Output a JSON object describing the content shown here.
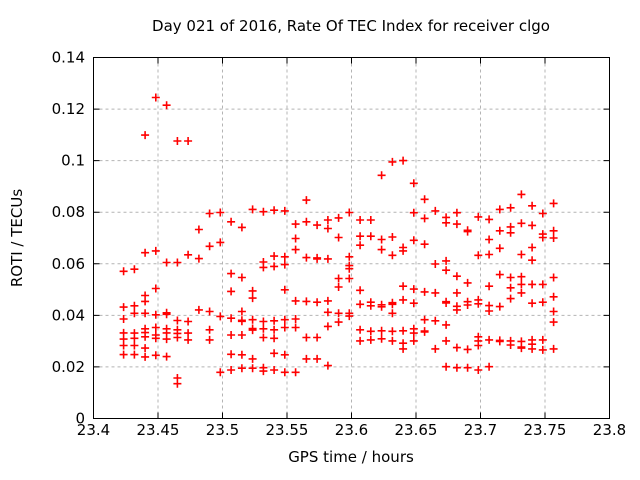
{
  "chart_data": {
    "type": "scatter",
    "title": "Day 021 of 2016, Rate Of TEC Index for receiver clgo",
    "xlabel": "GPS time / hours",
    "ylabel": "ROTI / TECUs",
    "xlim": [
      23.4,
      23.8
    ],
    "ylim": [
      0,
      0.14
    ],
    "xticks": [
      "23.4",
      "23.45",
      "23.5",
      "23.55",
      "23.6",
      "23.65",
      "23.7",
      "23.75",
      "23.8"
    ],
    "yticks": [
      "0",
      "0.02",
      "0.04",
      "0.06",
      "0.08",
      "0.1",
      "0.12",
      "0.14"
    ],
    "grid": true,
    "legend": "none",
    "marker": "plus",
    "marker_color": "#ff0000",
    "series": [
      {
        "name": "ROTI",
        "points": [
          [
            23.4233,
            0.0571
          ],
          [
            23.4233,
            0.0432
          ],
          [
            23.4233,
            0.0386
          ],
          [
            23.4233,
            0.0332
          ],
          [
            23.4233,
            0.0308
          ],
          [
            23.4233,
            0.0283
          ],
          [
            23.4233,
            0.0248
          ],
          [
            23.4317,
            0.0579
          ],
          [
            23.4317,
            0.0437
          ],
          [
            23.4317,
            0.0408
          ],
          [
            23.4317,
            0.0331
          ],
          [
            23.4317,
            0.0311
          ],
          [
            23.4317,
            0.0283
          ],
          [
            23.4317,
            0.0248
          ],
          [
            23.44,
            0.1099
          ],
          [
            23.44,
            0.0643
          ],
          [
            23.44,
            0.0477
          ],
          [
            23.44,
            0.0454
          ],
          [
            23.44,
            0.0408
          ],
          [
            23.44,
            0.0348
          ],
          [
            23.44,
            0.0333
          ],
          [
            23.44,
            0.0317
          ],
          [
            23.44,
            0.0273
          ],
          [
            23.44,
            0.0239
          ],
          [
            23.4483,
            0.1245
          ],
          [
            23.4483,
            0.065
          ],
          [
            23.4483,
            0.0504
          ],
          [
            23.4483,
            0.0402
          ],
          [
            23.4483,
            0.0353
          ],
          [
            23.4483,
            0.0324
          ],
          [
            23.4483,
            0.0311
          ],
          [
            23.4483,
            0.0245
          ],
          [
            23.4567,
            0.1215
          ],
          [
            23.4567,
            0.0605
          ],
          [
            23.4567,
            0.041
          ],
          [
            23.4567,
            0.0404
          ],
          [
            23.4567,
            0.0348
          ],
          [
            23.4567,
            0.0332
          ],
          [
            23.4567,
            0.0308
          ],
          [
            23.4567,
            0.024
          ],
          [
            23.465,
            0.1076
          ],
          [
            23.465,
            0.0605
          ],
          [
            23.465,
            0.038
          ],
          [
            23.465,
            0.0344
          ],
          [
            23.465,
            0.033
          ],
          [
            23.465,
            0.0314
          ],
          [
            23.465,
            0.0157
          ],
          [
            23.465,
            0.0135
          ],
          [
            23.4733,
            0.1076
          ],
          [
            23.4733,
            0.0635
          ],
          [
            23.4733,
            0.0376
          ],
          [
            23.4733,
            0.0331
          ],
          [
            23.4733,
            0.0305
          ],
          [
            23.4817,
            0.0733
          ],
          [
            23.4817,
            0.062
          ],
          [
            23.4817,
            0.0421
          ],
          [
            23.49,
            0.0795
          ],
          [
            23.49,
            0.0668
          ],
          [
            23.49,
            0.0415
          ],
          [
            23.49,
            0.0344
          ],
          [
            23.49,
            0.0305
          ],
          [
            23.4983,
            0.0799
          ],
          [
            23.4983,
            0.0683
          ],
          [
            23.4983,
            0.0396
          ],
          [
            23.4983,
            0.0179
          ],
          [
            23.5067,
            0.0763
          ],
          [
            23.5067,
            0.0562
          ],
          [
            23.5067,
            0.0493
          ],
          [
            23.5067,
            0.0389
          ],
          [
            23.5067,
            0.0324
          ],
          [
            23.5067,
            0.0249
          ],
          [
            23.5067,
            0.0188
          ],
          [
            23.515,
            0.0741
          ],
          [
            23.515,
            0.0547
          ],
          [
            23.515,
            0.0415
          ],
          [
            23.515,
            0.0381
          ],
          [
            23.515,
            0.0377
          ],
          [
            23.515,
            0.0324
          ],
          [
            23.515,
            0.0247
          ],
          [
            23.515,
            0.0195
          ],
          [
            23.5233,
            0.0811
          ],
          [
            23.5233,
            0.0495
          ],
          [
            23.5233,
            0.0467
          ],
          [
            23.5233,
            0.0383
          ],
          [
            23.5233,
            0.0349
          ],
          [
            23.5233,
            0.0343
          ],
          [
            23.5233,
            0.0231
          ],
          [
            23.5233,
            0.0195
          ],
          [
            23.5317,
            0.0802
          ],
          [
            23.5317,
            0.0607
          ],
          [
            23.5317,
            0.0586
          ],
          [
            23.5317,
            0.0376
          ],
          [
            23.5317,
            0.0348
          ],
          [
            23.5317,
            0.0314
          ],
          [
            23.5317,
            0.0197
          ],
          [
            23.5317,
            0.0184
          ],
          [
            23.54,
            0.0808
          ],
          [
            23.54,
            0.063
          ],
          [
            23.54,
            0.059
          ],
          [
            23.54,
            0.0379
          ],
          [
            23.54,
            0.0344
          ],
          [
            23.54,
            0.0311
          ],
          [
            23.54,
            0.0253
          ],
          [
            23.54,
            0.0188
          ],
          [
            23.5483,
            0.0805
          ],
          [
            23.5483,
            0.0627
          ],
          [
            23.5483,
            0.0597
          ],
          [
            23.5483,
            0.0499
          ],
          [
            23.5483,
            0.0383
          ],
          [
            23.5483,
            0.0353
          ],
          [
            23.5483,
            0.0247
          ],
          [
            23.5483,
            0.0179
          ],
          [
            23.5567,
            0.0754
          ],
          [
            23.5567,
            0.0698
          ],
          [
            23.5567,
            0.0655
          ],
          [
            23.5567,
            0.0456
          ],
          [
            23.5567,
            0.0386
          ],
          [
            23.5567,
            0.0353
          ],
          [
            23.5567,
            0.0179
          ],
          [
            23.565,
            0.0847
          ],
          [
            23.565,
            0.0763
          ],
          [
            23.565,
            0.0624
          ],
          [
            23.565,
            0.0454
          ],
          [
            23.565,
            0.0314
          ],
          [
            23.565,
            0.0231
          ],
          [
            23.5733,
            0.075
          ],
          [
            23.5733,
            0.0623
          ],
          [
            23.5733,
            0.0619
          ],
          [
            23.5733,
            0.0451
          ],
          [
            23.5733,
            0.0314
          ],
          [
            23.5733,
            0.0231
          ],
          [
            23.5817,
            0.077
          ],
          [
            23.5817,
            0.0737
          ],
          [
            23.5817,
            0.0619
          ],
          [
            23.5817,
            0.0456
          ],
          [
            23.5817,
            0.0412
          ],
          [
            23.5817,
            0.0357
          ],
          [
            23.5817,
            0.0205
          ],
          [
            23.59,
            0.0778
          ],
          [
            23.59,
            0.0702
          ],
          [
            23.59,
            0.0543
          ],
          [
            23.59,
            0.051
          ],
          [
            23.59,
            0.0408
          ],
          [
            23.59,
            0.0374
          ],
          [
            23.5983,
            0.0799
          ],
          [
            23.5983,
            0.0627
          ],
          [
            23.5983,
            0.0593
          ],
          [
            23.5983,
            0.0581
          ],
          [
            23.5983,
            0.0543
          ],
          [
            23.5983,
            0.0408
          ],
          [
            23.5983,
            0.0397
          ],
          [
            23.6067,
            0.077
          ],
          [
            23.6067,
            0.0707
          ],
          [
            23.6067,
            0.0672
          ],
          [
            23.6067,
            0.0497
          ],
          [
            23.6067,
            0.0443
          ],
          [
            23.6067,
            0.0344
          ],
          [
            23.6067,
            0.0301
          ],
          [
            23.615,
            0.077
          ],
          [
            23.615,
            0.0707
          ],
          [
            23.615,
            0.0451
          ],
          [
            23.615,
            0.0437
          ],
          [
            23.615,
            0.0338
          ],
          [
            23.615,
            0.0305
          ],
          [
            23.6233,
            0.0943
          ],
          [
            23.6233,
            0.0694
          ],
          [
            23.6233,
            0.0655
          ],
          [
            23.6233,
            0.0441
          ],
          [
            23.6233,
            0.0433
          ],
          [
            23.6233,
            0.034
          ],
          [
            23.6233,
            0.0309
          ],
          [
            23.6317,
            0.0995
          ],
          [
            23.6317,
            0.0704
          ],
          [
            23.6317,
            0.0633
          ],
          [
            23.6317,
            0.0449
          ],
          [
            23.6317,
            0.0443
          ],
          [
            23.6317,
            0.0408
          ],
          [
            23.6317,
            0.0338
          ],
          [
            23.6317,
            0.0301
          ],
          [
            23.64,
            0.1
          ],
          [
            23.64,
            0.0663
          ],
          [
            23.64,
            0.065
          ],
          [
            23.64,
            0.0513
          ],
          [
            23.64,
            0.046
          ],
          [
            23.64,
            0.034
          ],
          [
            23.64,
            0.0292
          ],
          [
            23.64,
            0.027
          ],
          [
            23.6483,
            0.0912
          ],
          [
            23.6483,
            0.0798
          ],
          [
            23.6483,
            0.0691
          ],
          [
            23.6483,
            0.0502
          ],
          [
            23.6483,
            0.0447
          ],
          [
            23.6483,
            0.0348
          ],
          [
            23.6483,
            0.0331
          ],
          [
            23.6483,
            0.0301
          ],
          [
            23.6567,
            0.085
          ],
          [
            23.6567,
            0.0776
          ],
          [
            23.6567,
            0.0676
          ],
          [
            23.6567,
            0.0491
          ],
          [
            23.6567,
            0.0383
          ],
          [
            23.6567,
            0.0339
          ],
          [
            23.6567,
            0.0336
          ],
          [
            23.665,
            0.0805
          ],
          [
            23.665,
            0.0599
          ],
          [
            23.665,
            0.0487
          ],
          [
            23.665,
            0.0379
          ],
          [
            23.665,
            0.027
          ],
          [
            23.6733,
            0.078
          ],
          [
            23.6733,
            0.0759
          ],
          [
            23.6733,
            0.0611
          ],
          [
            23.6733,
            0.0575
          ],
          [
            23.6733,
            0.0453
          ],
          [
            23.6733,
            0.0448
          ],
          [
            23.6733,
            0.0363
          ],
          [
            23.6733,
            0.0301
          ],
          [
            23.6733,
            0.0201
          ],
          [
            23.6817,
            0.0798
          ],
          [
            23.6817,
            0.0754
          ],
          [
            23.6817,
            0.0552
          ],
          [
            23.6817,
            0.0487
          ],
          [
            23.6817,
            0.0435
          ],
          [
            23.6817,
            0.0421
          ],
          [
            23.6817,
            0.0275
          ],
          [
            23.6817,
            0.0197
          ],
          [
            23.69,
            0.073
          ],
          [
            23.69,
            0.0725
          ],
          [
            23.69,
            0.0526
          ],
          [
            23.69,
            0.0453
          ],
          [
            23.69,
            0.044
          ],
          [
            23.69,
            0.0268
          ],
          [
            23.69,
            0.0197
          ],
          [
            23.6983,
            0.0782
          ],
          [
            23.6983,
            0.0633
          ],
          [
            23.6983,
            0.046
          ],
          [
            23.6983,
            0.0445
          ],
          [
            23.6983,
            0.0317
          ],
          [
            23.6983,
            0.0301
          ],
          [
            23.6983,
            0.0283
          ],
          [
            23.6983,
            0.0188
          ],
          [
            23.7067,
            0.0772
          ],
          [
            23.7067,
            0.0694
          ],
          [
            23.7067,
            0.0636
          ],
          [
            23.7067,
            0.0513
          ],
          [
            23.7067,
            0.0438
          ],
          [
            23.7067,
            0.0417
          ],
          [
            23.7067,
            0.0305
          ],
          [
            23.7067,
            0.0201
          ],
          [
            23.715,
            0.0811
          ],
          [
            23.715,
            0.0728
          ],
          [
            23.715,
            0.066
          ],
          [
            23.715,
            0.0558
          ],
          [
            23.715,
            0.0434
          ],
          [
            23.715,
            0.0303
          ],
          [
            23.715,
            0.0299
          ],
          [
            23.7233,
            0.0817
          ],
          [
            23.7233,
            0.0743
          ],
          [
            23.7233,
            0.072
          ],
          [
            23.7233,
            0.0547
          ],
          [
            23.7233,
            0.0507
          ],
          [
            23.7233,
            0.0465
          ],
          [
            23.7233,
            0.0301
          ],
          [
            23.7233,
            0.0285
          ],
          [
            23.7317,
            0.0869
          ],
          [
            23.7317,
            0.0757
          ],
          [
            23.7317,
            0.0636
          ],
          [
            23.7317,
            0.055
          ],
          [
            23.7317,
            0.052
          ],
          [
            23.7317,
            0.0487
          ],
          [
            23.7317,
            0.0299
          ],
          [
            23.7317,
            0.0277
          ],
          [
            23.7317,
            0.0273
          ],
          [
            23.74,
            0.0825
          ],
          [
            23.74,
            0.0749
          ],
          [
            23.74,
            0.0663
          ],
          [
            23.74,
            0.0614
          ],
          [
            23.74,
            0.052
          ],
          [
            23.74,
            0.0447
          ],
          [
            23.74,
            0.0305
          ],
          [
            23.74,
            0.0288
          ],
          [
            23.74,
            0.027
          ],
          [
            23.7483,
            0.0795
          ],
          [
            23.7483,
            0.0715
          ],
          [
            23.7483,
            0.0702
          ],
          [
            23.7483,
            0.052
          ],
          [
            23.7483,
            0.0451
          ],
          [
            23.7483,
            0.0305
          ],
          [
            23.7483,
            0.0266
          ],
          [
            23.7567,
            0.0834
          ],
          [
            23.7567,
            0.0728
          ],
          [
            23.7567,
            0.07
          ],
          [
            23.7567,
            0.0547
          ],
          [
            23.7567,
            0.0472
          ],
          [
            23.7567,
            0.0415
          ],
          [
            23.7567,
            0.0374
          ],
          [
            23.7567,
            0.027
          ]
        ]
      }
    ]
  }
}
